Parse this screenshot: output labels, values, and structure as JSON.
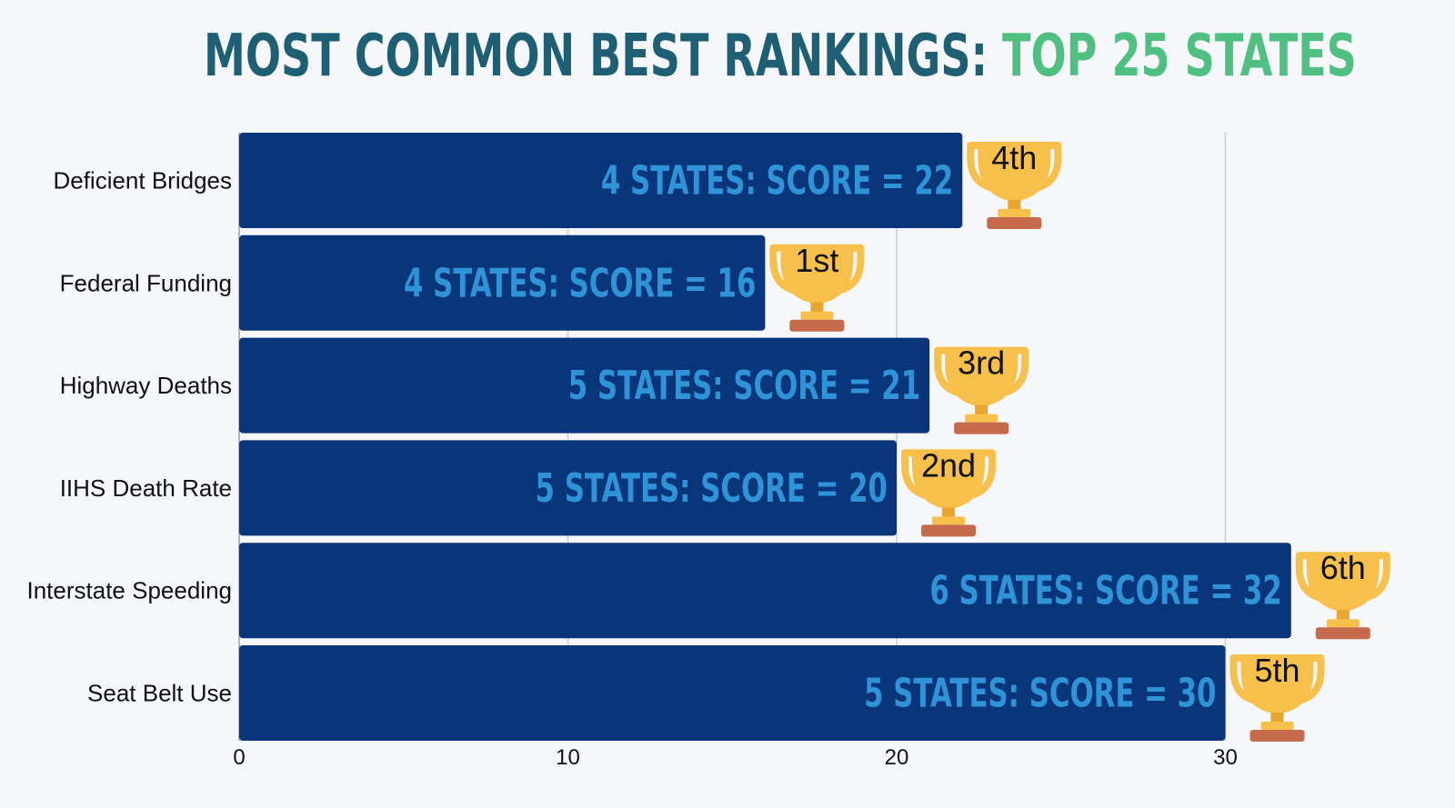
{
  "title": {
    "main": "MOST COMMON BEST RANKINGS: ",
    "accent": "TOP 25 STATES"
  },
  "colors": {
    "bar": "#09357a",
    "bar_label": "#2f93d8",
    "title_main": "#1f5f73",
    "title_accent": "#4fc082",
    "trophy_cup": "#f7c04a",
    "trophy_base": "#c56a4a"
  },
  "chart_data": {
    "type": "bar",
    "orientation": "horizontal",
    "categories": [
      "Deficient Bridges",
      "Federal Funding",
      "Highway Deaths",
      "IIHS Death Rate",
      "Interstate Speeding",
      "Seat Belt Use"
    ],
    "values": [
      22,
      16,
      21,
      20,
      32,
      30
    ],
    "bar_labels": [
      "4 STATES: SCORE = 22",
      "4 STATES: SCORE = 16",
      "5 STATES: SCORE = 21",
      "5 STATES: SCORE = 20",
      "6 STATES: SCORE = 32",
      "5 STATES: SCORE = 30"
    ],
    "ranks": [
      "4th",
      "1st",
      "3rd",
      "2nd",
      "6th",
      "5th"
    ],
    "xlim": [
      0,
      35
    ],
    "xticks": [
      0,
      10,
      20,
      30
    ],
    "grid": true,
    "icon": "trophy-icon"
  }
}
